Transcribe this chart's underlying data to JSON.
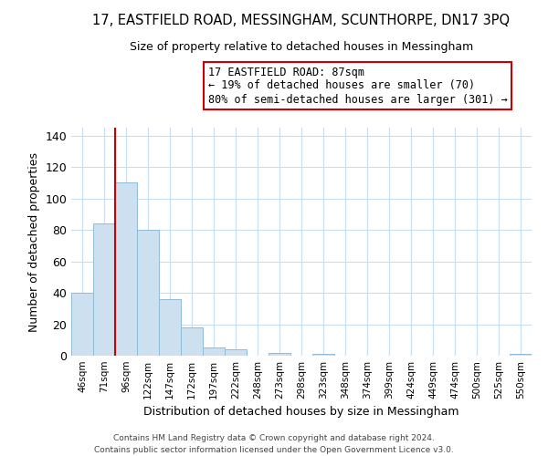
{
  "title": "17, EASTFIELD ROAD, MESSINGHAM, SCUNTHORPE, DN17 3PQ",
  "subtitle": "Size of property relative to detached houses in Messingham",
  "xlabel": "Distribution of detached houses by size in Messingham",
  "ylabel": "Number of detached properties",
  "bar_labels": [
    "46sqm",
    "71sqm",
    "96sqm",
    "122sqm",
    "147sqm",
    "172sqm",
    "197sqm",
    "222sqm",
    "248sqm",
    "273sqm",
    "298sqm",
    "323sqm",
    "348sqm",
    "374sqm",
    "399sqm",
    "424sqm",
    "449sqm",
    "474sqm",
    "500sqm",
    "525sqm",
    "550sqm"
  ],
  "bar_heights": [
    40,
    84,
    110,
    80,
    36,
    18,
    5,
    4,
    0,
    2,
    0,
    1,
    0,
    0,
    0,
    0,
    0,
    0,
    0,
    0,
    1
  ],
  "bar_color": "#cce0f0",
  "bar_edge_color": "#90bbd8",
  "vline_color": "#cc0000",
  "ylim": [
    0,
    145
  ],
  "annotation_title": "17 EASTFIELD ROAD: 87sqm",
  "annotation_line1": "← 19% of detached houses are smaller (70)",
  "annotation_line2": "80% of semi-detached houses are larger (301) →",
  "footer_line1": "Contains HM Land Registry data © Crown copyright and database right 2024.",
  "footer_line2": "Contains public sector information licensed under the Open Government Licence v3.0.",
  "background_color": "#ffffff",
  "grid_color": "#c8ddf0"
}
